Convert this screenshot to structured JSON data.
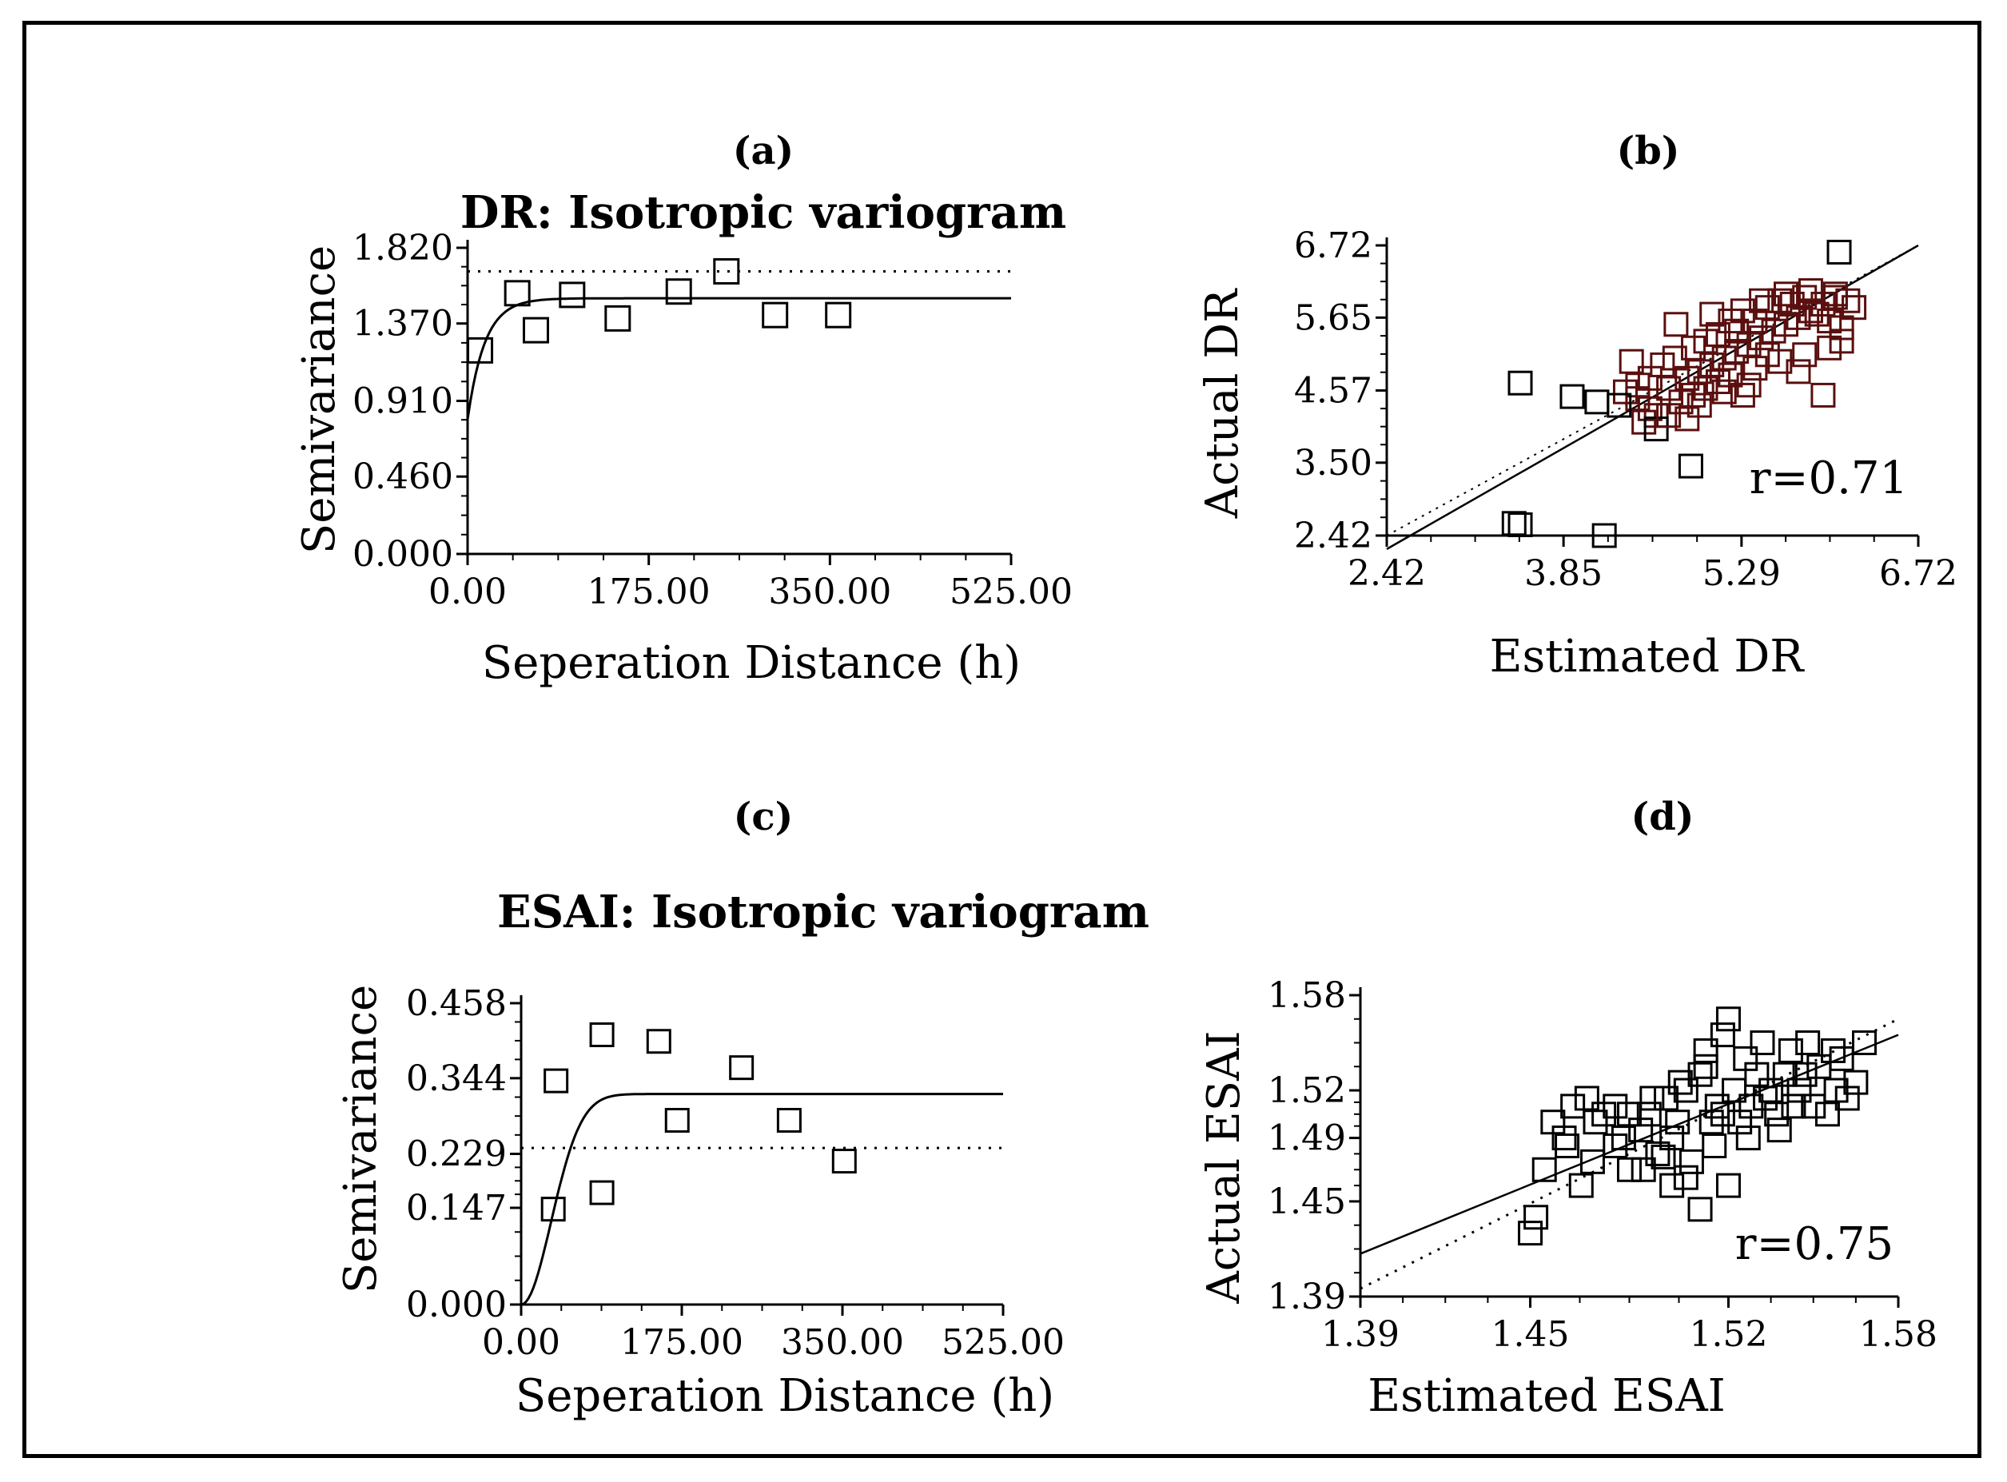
{
  "chart_data": [
    {
      "id": "a",
      "type": "scatter",
      "panel_label": "(a)",
      "title": "DR: Isotropic variogram",
      "xlabel": "Seperation Distance (h)",
      "ylabel": "Semivariance",
      "xlim": [
        0,
        525
      ],
      "ylim": [
        0,
        1.82
      ],
      "x_ticks": [
        "0.00",
        "175.00",
        "350.00",
        "525.00"
      ],
      "x_tick_values": [
        0,
        175,
        350,
        525
      ],
      "y_ticks": [
        "0.000",
        "0.460",
        "0.910",
        "1.370",
        "1.820"
      ],
      "y_tick_values": [
        0,
        0.46,
        0.91,
        1.37,
        1.82
      ],
      "points": [
        [
          12,
          1.21
        ],
        [
          48,
          1.55
        ],
        [
          66,
          1.33
        ],
        [
          101,
          1.54
        ],
        [
          145,
          1.4
        ],
        [
          204,
          1.56
        ],
        [
          250,
          1.68
        ],
        [
          297,
          1.42
        ],
        [
          358,
          1.42
        ]
      ],
      "model": {
        "nugget": 0.8,
        "sill": 1.52,
        "range": 50
      },
      "reference_line": 1.68
    },
    {
      "id": "b",
      "type": "scatter",
      "panel_label": "(b)",
      "xlabel": "Estimated DR",
      "ylabel": "Actual DR",
      "xlim": [
        2.42,
        6.72
      ],
      "ylim": [
        2.42,
        6.72
      ],
      "x_ticks": [
        "2.42",
        "3.85",
        "5.29",
        "6.72"
      ],
      "x_tick_values": [
        2.42,
        3.85,
        5.29,
        6.72
      ],
      "y_ticks": [
        "2.42",
        "3.50",
        "4.57",
        "5.65",
        "6.72"
      ],
      "y_tick_values": [
        2.42,
        3.5,
        4.57,
        5.65,
        6.72
      ],
      "annotation": "r=0.71",
      "fit_line": [
        [
          2.42,
          2.22
        ],
        [
          6.72,
          6.72
        ]
      ],
      "points": [
        [
          3.5,
          4.68
        ],
        [
          3.45,
          2.6
        ],
        [
          3.5,
          2.58
        ],
        [
          3.92,
          4.48
        ],
        [
          4.12,
          4.4
        ],
        [
          4.18,
          2.42
        ],
        [
          6.08,
          6.62
        ],
        [
          4.88,
          3.45
        ],
        [
          4.76,
          5.55
        ],
        [
          5.05,
          5.7
        ],
        [
          5.95,
          4.5
        ],
        [
          5.3,
          4.5
        ],
        [
          4.45,
          4.45
        ],
        [
          4.55,
          4.3
        ],
        [
          4.7,
          4.6
        ],
        [
          4.85,
          4.75
        ],
        [
          4.95,
          4.85
        ],
        [
          5.05,
          4.95
        ],
        [
          5.15,
          5.05
        ],
        [
          5.25,
          5.15
        ],
        [
          5.35,
          5.25
        ],
        [
          5.45,
          5.35
        ],
        [
          5.55,
          5.45
        ],
        [
          5.65,
          5.55
        ],
        [
          5.75,
          5.65
        ],
        [
          5.85,
          5.75
        ],
        [
          5.95,
          5.85
        ],
        [
          6.05,
          5.95
        ],
        [
          6.15,
          5.9
        ],
        [
          6.2,
          5.8
        ],
        [
          5.5,
          5.8
        ],
        [
          5.6,
          5.9
        ],
        [
          5.7,
          5.85
        ],
        [
          5.8,
          5.95
        ],
        [
          5.9,
          5.7
        ],
        [
          6.0,
          5.6
        ],
        [
          6.1,
          5.5
        ],
        [
          5.4,
          5.6
        ],
        [
          5.3,
          5.75
        ],
        [
          5.2,
          5.6
        ],
        [
          5.1,
          4.7
        ],
        [
          5.0,
          4.6
        ],
        [
          4.9,
          4.5
        ],
        [
          4.8,
          4.4
        ],
        [
          4.6,
          4.2
        ],
        [
          4.5,
          4.1
        ],
        [
          4.65,
          4.95
        ],
        [
          4.75,
          5.05
        ],
        [
          4.55,
          4.75
        ],
        [
          4.45,
          4.65
        ],
        [
          4.35,
          4.55
        ],
        [
          4.4,
          5.0
        ],
        [
          4.3,
          4.35
        ],
        [
          4.6,
          4.0
        ],
        [
          4.7,
          4.2
        ],
        [
          5.2,
          4.8
        ],
        [
          5.4,
          4.9
        ],
        [
          5.6,
          5.0
        ],
        [
          5.8,
          5.1
        ],
        [
          6.0,
          5.2
        ],
        [
          6.1,
          5.3
        ],
        [
          5.75,
          4.85
        ],
        [
          5.5,
          5.1
        ],
        [
          5.35,
          4.65
        ],
        [
          5.25,
          5.45
        ],
        [
          5.45,
          5.9
        ],
        [
          5.65,
          6.0
        ],
        [
          5.85,
          6.05
        ],
        [
          6.05,
          6.0
        ],
        [
          4.9,
          5.2
        ],
        [
          5.0,
          5.3
        ],
        [
          5.1,
          5.4
        ],
        [
          4.95,
          4.35
        ],
        [
          5.15,
          4.55
        ],
        [
          4.85,
          4.15
        ]
      ]
    },
    {
      "id": "c",
      "type": "scatter",
      "panel_label": "(c)",
      "title": "ESAI: Isotropic variogram",
      "xlabel": "Seperation Distance (h)",
      "ylabel": "Semivariance",
      "xlim": [
        0,
        525
      ],
      "ylim": [
        0,
        0.458
      ],
      "x_ticks": [
        "0.00",
        "175.00",
        "350.00",
        "525.00"
      ],
      "x_tick_values": [
        0,
        175,
        350,
        525
      ],
      "y_ticks": [
        "0.000",
        "0.147",
        "0.229",
        "0.344",
        "0.458"
      ],
      "y_tick_values": [
        0,
        0.147,
        0.229,
        0.344,
        0.458
      ],
      "points": [
        [
          35,
          0.145
        ],
        [
          38,
          0.34
        ],
        [
          88,
          0.41
        ],
        [
          88,
          0.17
        ],
        [
          150,
          0.4
        ],
        [
          170,
          0.28
        ],
        [
          240,
          0.36
        ],
        [
          292,
          0.28
        ],
        [
          352,
          0.218
        ]
      ],
      "model": {
        "nugget": 0.0,
        "sill": 0.32,
        "range": 80
      },
      "reference_line": 0.238
    },
    {
      "id": "d",
      "type": "scatter",
      "panel_label": "(d)",
      "xlabel": "Estimated ESAI",
      "ylabel": "Actual ESAI",
      "xlim": [
        1.39,
        1.58
      ],
      "ylim": [
        1.39,
        1.58
      ],
      "x_ticks": [
        "1.39",
        "1.45",
        "1.52",
        "1.58"
      ],
      "x_tick_values": [
        1.39,
        1.45,
        1.52,
        1.58
      ],
      "y_ticks": [
        "1.39",
        "1.45",
        "1.49",
        "1.52",
        "1.58"
      ],
      "y_tick_values": [
        1.39,
        1.45,
        1.49,
        1.52,
        1.58
      ],
      "annotation": "r=0.75",
      "fit_line": [
        [
          1.39,
          1.417
        ],
        [
          1.58,
          1.555
        ]
      ],
      "dotted_line": [
        [
          1.39,
          1.395
        ],
        [
          1.58,
          1.565
        ]
      ],
      "points": [
        [
          1.45,
          1.43
        ],
        [
          1.452,
          1.44
        ],
        [
          1.455,
          1.47
        ],
        [
          1.458,
          1.5
        ],
        [
          1.462,
          1.49
        ],
        [
          1.468,
          1.46
        ],
        [
          1.472,
          1.475
        ],
        [
          1.476,
          1.505
        ],
        [
          1.48,
          1.485
        ],
        [
          1.485,
          1.47
        ],
        [
          1.489,
          1.495
        ],
        [
          1.492,
          1.505
        ],
        [
          1.495,
          1.48
        ],
        [
          1.498,
          1.515
        ],
        [
          1.5,
          1.49
        ],
        [
          1.502,
          1.5
        ],
        [
          1.505,
          1.52
        ],
        [
          1.507,
          1.475
        ],
        [
          1.51,
          1.53
        ],
        [
          1.512,
          1.545
        ],
        [
          1.514,
          1.5
        ],
        [
          1.516,
          1.51
        ],
        [
          1.518,
          1.555
        ],
        [
          1.52,
          1.565
        ],
        [
          1.522,
          1.52
        ],
        [
          1.524,
          1.5
        ],
        [
          1.526,
          1.54
        ],
        [
          1.528,
          1.51
        ],
        [
          1.53,
          1.53
        ],
        [
          1.532,
          1.55
        ],
        [
          1.535,
          1.52
        ],
        [
          1.538,
          1.495
        ],
        [
          1.54,
          1.53
        ],
        [
          1.542,
          1.545
        ],
        [
          1.545,
          1.52
        ],
        [
          1.548,
          1.55
        ],
        [
          1.55,
          1.51
        ],
        [
          1.552,
          1.535
        ],
        [
          1.555,
          1.505
        ],
        [
          1.558,
          1.52
        ],
        [
          1.56,
          1.54
        ],
        [
          1.562,
          1.515
        ],
        [
          1.565,
          1.525
        ],
        [
          1.568,
          1.55
        ],
        [
          1.5,
          1.46
        ],
        [
          1.51,
          1.445
        ],
        [
          1.52,
          1.46
        ],
        [
          1.497,
          1.478
        ],
        [
          1.485,
          1.505
        ],
        [
          1.465,
          1.51
        ],
        [
          1.47,
          1.515
        ],
        [
          1.48,
          1.51
        ],
        [
          1.49,
          1.47
        ],
        [
          1.505,
          1.465
        ],
        [
          1.515,
          1.485
        ],
        [
          1.527,
          1.49
        ],
        [
          1.537,
          1.505
        ],
        [
          1.547,
          1.53
        ],
        [
          1.557,
          1.545
        ],
        [
          1.512,
          1.535
        ],
        [
          1.503,
          1.525
        ],
        [
          1.493,
          1.515
        ],
        [
          1.483,
          1.49
        ],
        [
          1.473,
          1.5
        ],
        [
          1.463,
          1.485
        ],
        [
          1.518,
          1.505
        ],
        [
          1.533,
          1.515
        ],
        [
          1.543,
          1.51
        ]
      ]
    }
  ]
}
